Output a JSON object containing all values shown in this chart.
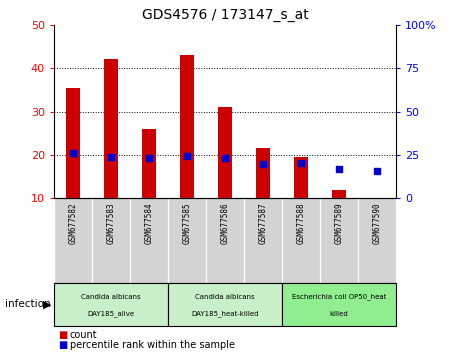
{
  "title": "GDS4576 / 173147_s_at",
  "samples": [
    "GSM677582",
    "GSM677583",
    "GSM677584",
    "GSM677585",
    "GSM677586",
    "GSM677587",
    "GSM677588",
    "GSM677589",
    "GSM677590"
  ],
  "counts": [
    35.5,
    42.0,
    26.0,
    43.0,
    31.0,
    21.5,
    19.5,
    12.0,
    10.0
  ],
  "count_base": 10,
  "percentile_ranks": [
    26.0,
    23.5,
    23.0,
    24.5,
    23.0,
    20.0,
    20.5,
    17.0,
    15.5
  ],
  "left_ylim": [
    10,
    50
  ],
  "left_yticks": [
    10,
    20,
    30,
    40,
    50
  ],
  "right_ylim": [
    0,
    100
  ],
  "right_yticks": [
    0,
    25,
    50,
    75,
    100
  ],
  "right_yticklabels": [
    "0",
    "25",
    "50",
    "75",
    "100%"
  ],
  "bar_color": "#cc0000",
  "dot_color": "#0000cc",
  "groups": [
    {
      "label": "Candida albicans\nDAY185_alive",
      "start": 0,
      "end": 3,
      "color": "#c8f0c8"
    },
    {
      "label": "Candida albicans\nDAY185_heat-killed",
      "start": 3,
      "end": 6,
      "color": "#c8f0c8"
    },
    {
      "label": "Escherichia coli OP50_heat\nkilled",
      "start": 6,
      "end": 9,
      "color": "#90ee90"
    }
  ],
  "group_label": "infection",
  "legend_count_label": "count",
  "legend_pct_label": "percentile rank within the sample",
  "tick_bg_color": "#d3d3d3",
  "dot_size": 25,
  "bar_width": 0.35
}
